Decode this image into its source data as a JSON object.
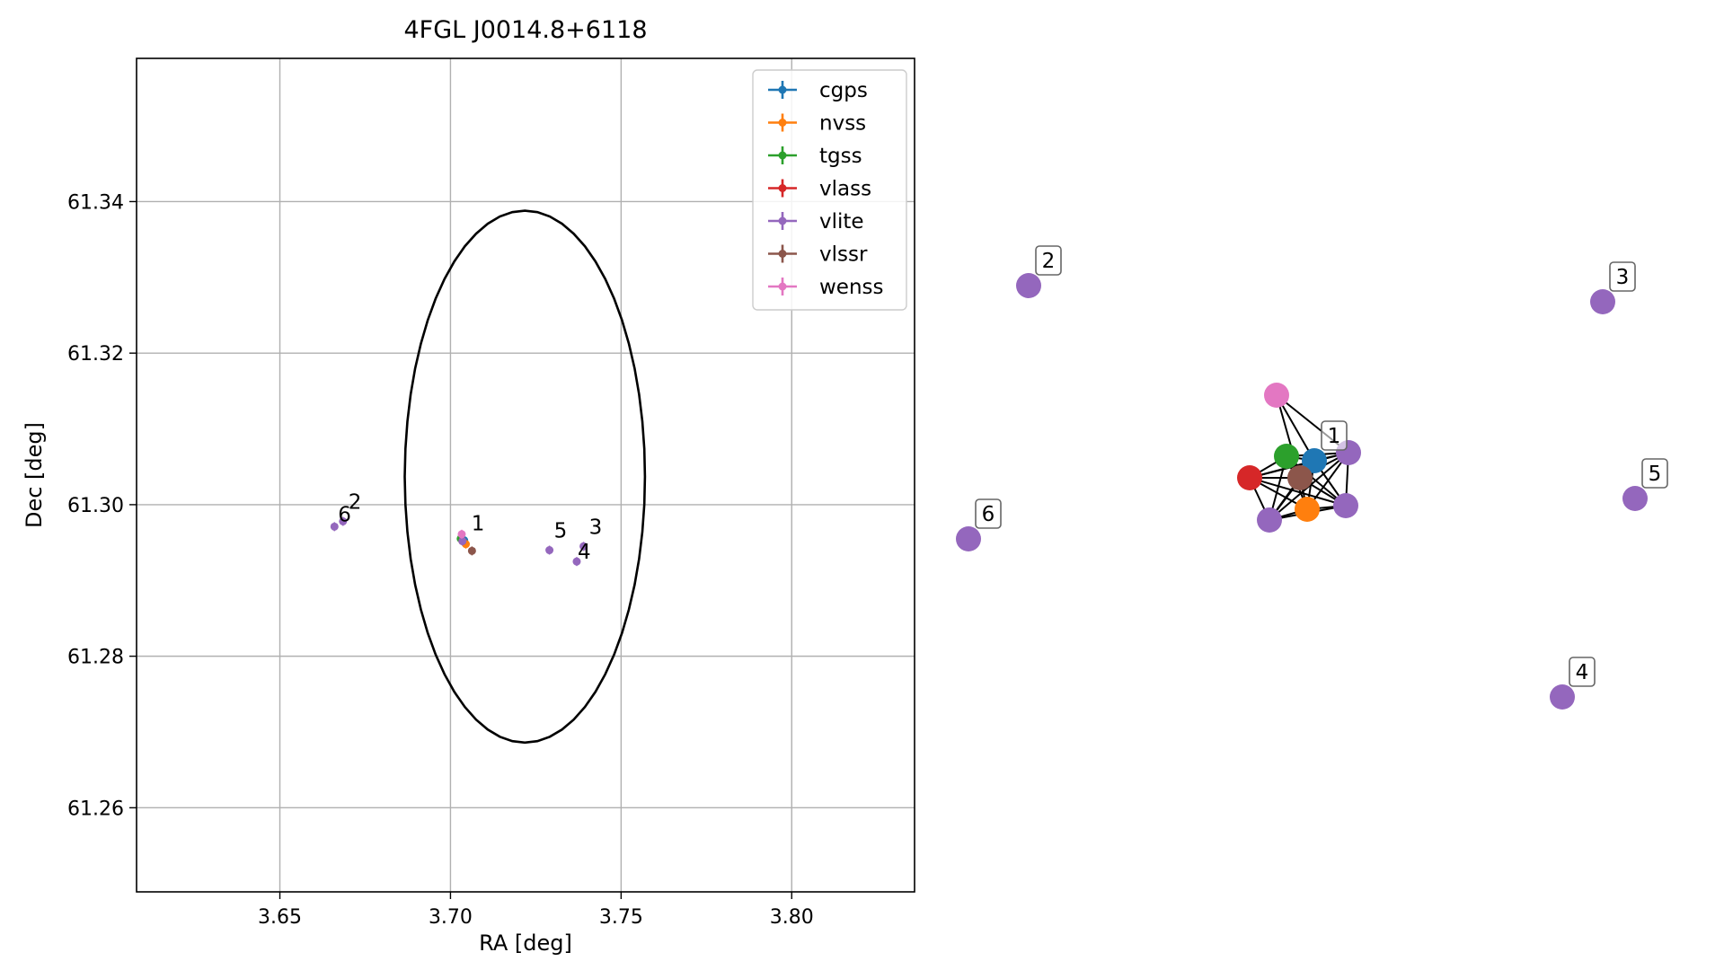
{
  "figure_title": "4FGL J0014.8+6118",
  "colors": {
    "cgps": "#1f77b4",
    "nvss": "#ff7f0e",
    "tgss": "#2ca02c",
    "vlass": "#d62728",
    "vlite": "#9467bd",
    "vlssr": "#8c564b",
    "wenss": "#e377c2",
    "grid": "#b0b0b0",
    "circle": "#000000"
  },
  "chart_data": [
    {
      "type": "scatter",
      "title": "4FGL J0014.8+6118",
      "xlabel": "RA [deg]",
      "ylabel": "Dec [deg]",
      "xlim": [
        3.608,
        3.836
      ],
      "ylim": [
        61.2489,
        61.3589
      ],
      "xticks": [
        3.65,
        3.7,
        3.75,
        3.8
      ],
      "xtick_labels": [
        "3.65",
        "3.70",
        "3.75",
        "3.80"
      ],
      "yticks": [
        61.26,
        61.28,
        61.3,
        61.32,
        61.34
      ],
      "ytick_labels": [
        "61.26",
        "61.28",
        "61.30",
        "61.32",
        "61.34"
      ],
      "grid": true,
      "legend_position": "top-right",
      "uncertainty_circle": {
        "center_ra": 3.7218,
        "center_dec": 61.3037,
        "radius_deg": 0.0352,
        "radius_dec": 0.0351
      },
      "series": [
        {
          "name": "cgps",
          "points": [
            {
              "x": 3.704,
              "y": 61.2953
            }
          ]
        },
        {
          "name": "nvss",
          "points": [
            {
              "x": 3.7045,
              "y": 61.2948
            }
          ]
        },
        {
          "name": "tgss",
          "points": [
            {
              "x": 3.703,
              "y": 61.2955
            }
          ]
        },
        {
          "name": "vlass",
          "points": [
            {
              "x": 3.7035,
              "y": 61.2952
            }
          ]
        },
        {
          "name": "vlite",
          "points": [
            {
              "x": 3.7035,
              "y": 61.2952,
              "label": "1"
            },
            {
              "x": 3.6685,
              "y": 61.2978,
              "label": "2"
            },
            {
              "x": 3.739,
              "y": 61.2945,
              "label": "3"
            },
            {
              "x": 3.737,
              "y": 61.2925,
              "label": "4"
            },
            {
              "x": 3.729,
              "y": 61.294,
              "label": "5"
            },
            {
              "x": 3.666,
              "y": 61.2971,
              "label": "6"
            }
          ]
        },
        {
          "name": "vlssr",
          "points": [
            {
              "x": 3.7063,
              "y": 61.2939
            }
          ]
        },
        {
          "name": "wenss",
          "points": [
            {
              "x": 3.7033,
              "y": 61.2961
            }
          ]
        }
      ]
    },
    {
      "type": "network",
      "nodes": [
        {
          "survey": "wenss"
        },
        {
          "survey": "tgss"
        },
        {
          "survey": "cgps",
          "label": "1"
        },
        {
          "survey": "vlite"
        },
        {
          "survey": "vlass"
        },
        {
          "survey": "vlssr"
        },
        {
          "survey": "vlite"
        },
        {
          "survey": "nvss"
        },
        {
          "survey": "vlite"
        },
        {
          "survey": "vlite",
          "label": "2"
        },
        {
          "survey": "vlite",
          "label": "3"
        },
        {
          "survey": "vlite",
          "label": "5"
        },
        {
          "survey": "vlite",
          "label": "6"
        },
        {
          "survey": "vlite",
          "label": "4"
        }
      ],
      "edges": [
        [
          0,
          5
        ],
        [
          0,
          2
        ],
        [
          0,
          3
        ],
        [
          1,
          2
        ],
        [
          1,
          4
        ],
        [
          1,
          5
        ],
        [
          1,
          6
        ],
        [
          1,
          7
        ],
        [
          1,
          8
        ],
        [
          1,
          3
        ],
        [
          2,
          3
        ],
        [
          2,
          4
        ],
        [
          2,
          5
        ],
        [
          2,
          6
        ],
        [
          2,
          7
        ],
        [
          2,
          8
        ],
        [
          3,
          4
        ],
        [
          3,
          5
        ],
        [
          3,
          6
        ],
        [
          3,
          7
        ],
        [
          3,
          8
        ],
        [
          4,
          5
        ],
        [
          4,
          6
        ],
        [
          4,
          7
        ],
        [
          4,
          8
        ],
        [
          5,
          6
        ],
        [
          5,
          7
        ],
        [
          5,
          8
        ],
        [
          6,
          7
        ],
        [
          6,
          8
        ],
        [
          7,
          8
        ]
      ]
    }
  ]
}
